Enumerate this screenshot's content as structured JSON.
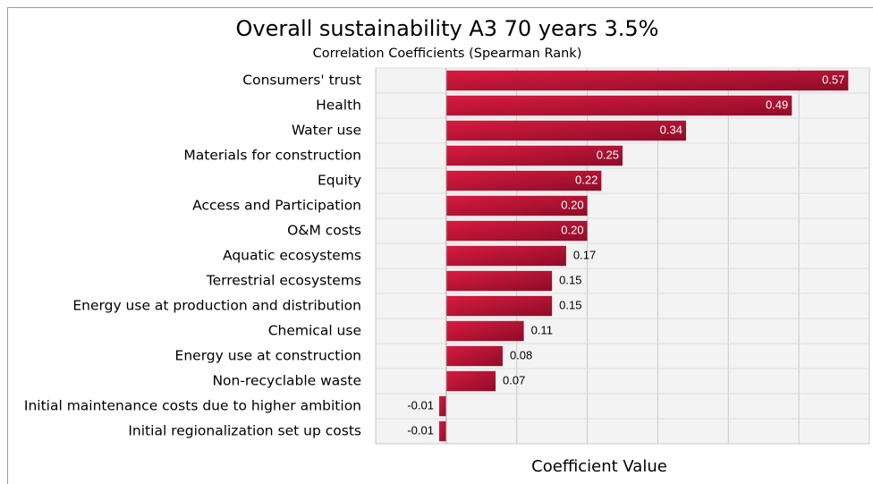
{
  "chart_data": {
    "type": "barh",
    "title": "Overall sustainability A3 70 years 3.5%",
    "subtitle": "Correlation Coefficients (Spearman Rank)",
    "x_label": "Coefficient Value",
    "categories": [
      "Consumers' trust",
      "Health",
      "Water use",
      "Materials for construction",
      "Equity",
      "Access and Participation",
      "O&M costs",
      "Aquatic ecosystems",
      "Terrestrial ecosystems",
      "Energy use at production and distribution",
      "Chemical use",
      "Energy use at construction",
      "Non-recyclable waste",
      "Initial maintenance costs due to higher ambition",
      "Initial regionalization set up costs"
    ],
    "values": [
      0.57,
      0.49,
      0.34,
      0.25,
      0.22,
      0.2,
      0.2,
      0.17,
      0.15,
      0.15,
      0.11,
      0.08,
      0.07,
      -0.01,
      -0.01
    ],
    "value_labels": [
      "0.57",
      "0.49",
      "0.34",
      "0.25",
      "0.22",
      "0.20",
      "0.20",
      "0.17",
      "0.15",
      "0.15",
      "0.11",
      "0.08",
      "0.07",
      "-0.01",
      "-0.01"
    ],
    "color": "#d81b40",
    "xlim": [
      -0.1,
      0.6
    ],
    "xticks": [
      -0.1,
      0,
      0.1,
      0.2,
      0.3,
      0.4,
      0.5,
      0.6
    ],
    "xtick_labels": false,
    "grid": true
  }
}
